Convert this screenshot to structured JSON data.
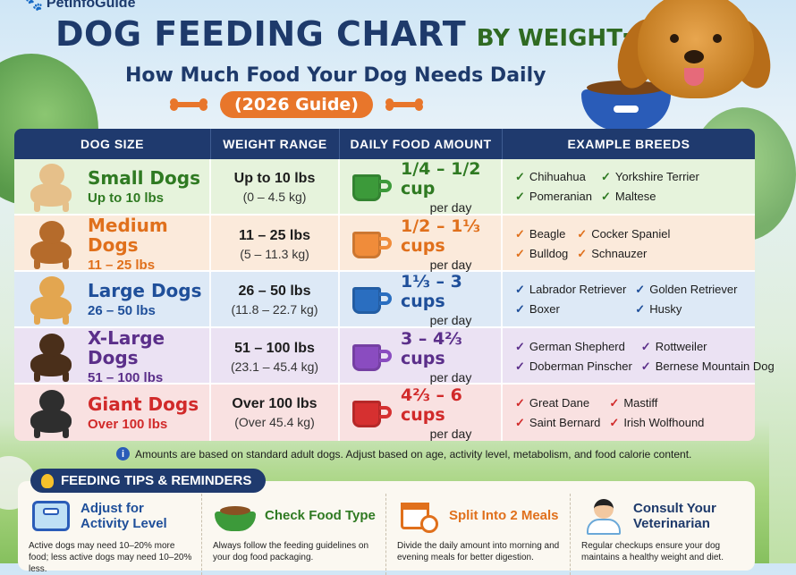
{
  "brand": "PetInfoGuide",
  "title": {
    "main": "DOG FEEDING CHART",
    "sub": "BY WEIGHT:"
  },
  "subtitle": "How Much Food Your Dog Needs Daily",
  "guide_label": "(2026 Guide)",
  "columns": [
    "DOG SIZE",
    "WEIGHT RANGE",
    "DAILY FOOD AMOUNT",
    "EXAMPLE BREEDS"
  ],
  "rows": [
    {
      "size": "Small Dogs",
      "range": "Up to 10 lbs",
      "lbs": "Up to 10 lbs",
      "kg": "(0 – 4.5 kg)",
      "food": "1/4 – 1/2 cup",
      "per": "per day",
      "breeds": [
        "Chihuahua",
        "Yorkshire Terrier",
        "Pomeranian",
        "Maltese"
      ],
      "color": "#2f7a22",
      "dog_color": "#e6c08a",
      "cup_color": "#3c9a3a"
    },
    {
      "size": "Medium Dogs",
      "range": "11 – 25 lbs",
      "lbs": "11 – 25 lbs",
      "kg": "(5 – 11.3 kg)",
      "food": "1/2 – 1⅓ cups",
      "per": "per day",
      "breeds": [
        "Beagle",
        "Cocker Spaniel",
        "Bulldog",
        "Schnauzer"
      ],
      "color": "#e0701c",
      "dog_color": "#b56b2b",
      "cup_color": "#f08c3a"
    },
    {
      "size": "Large Dogs",
      "range": "26 – 50 lbs",
      "lbs": "26 – 50 lbs",
      "kg": "(11.8 – 22.7 kg)",
      "food": "1⅓ – 3 cups",
      "per": "per day",
      "breeds": [
        "Labrador Retriever",
        "Golden Retriever",
        "Boxer",
        "Husky"
      ],
      "color": "#1f4f9a",
      "dog_color": "#e3a650",
      "cup_color": "#2a6ec0"
    },
    {
      "size": "X-Large Dogs",
      "range": "51 – 100 lbs",
      "lbs": "51 – 100 lbs",
      "kg": "(23.1 – 45.4 kg)",
      "food": "3 – 4⅔ cups",
      "per": "per day",
      "breeds": [
        "German Shepherd",
        "Rottweiler",
        "Doberman Pinscher",
        "Bernese Mountain Dog"
      ],
      "color": "#5b2f8a",
      "dog_color": "#4a2f1a",
      "cup_color": "#8a4cc0"
    },
    {
      "size": "Giant Dogs",
      "range": "Over 100 lbs",
      "lbs": "Over 100 lbs",
      "kg": "(Over 45.4 kg)",
      "food": "4⅔ – 6 cups",
      "per": "per day",
      "breeds": [
        "Great Dane",
        "Mastiff",
        "Saint Bernard",
        "Irish Wolfhound"
      ],
      "color": "#d12a2a",
      "dog_color": "#2e2e2e",
      "cup_color": "#d63030"
    }
  ],
  "note": "Amounts are based on standard adult dogs. Adjust based on age, activity level, metabolism, and food calorie content.",
  "tips_heading": "FEEDING TIPS & REMINDERS",
  "tips": [
    {
      "title": "Adjust for Activity Level",
      "text": "Active dogs may need 10–20% more food; less active dogs may need 10–20% less.",
      "color": "#1f4f9a",
      "icon": "scale-icon"
    },
    {
      "title": "Check Food Type",
      "text": "Always follow the feeding guidelines on your dog food packaging.",
      "color": "#2f7a22",
      "icon": "food-bowl-icon"
    },
    {
      "title": "Split Into 2 Meals",
      "text": "Divide the daily amount into morning and evening meals for better digestion.",
      "color": "#e0701c",
      "icon": "calendar-clock-icon"
    },
    {
      "title": "Consult Your Veterinarian",
      "text": "Regular checkups ensure your dog maintains a healthy weight and diet.",
      "color": "#1e3a6b",
      "icon": "veterinarian-icon"
    }
  ]
}
